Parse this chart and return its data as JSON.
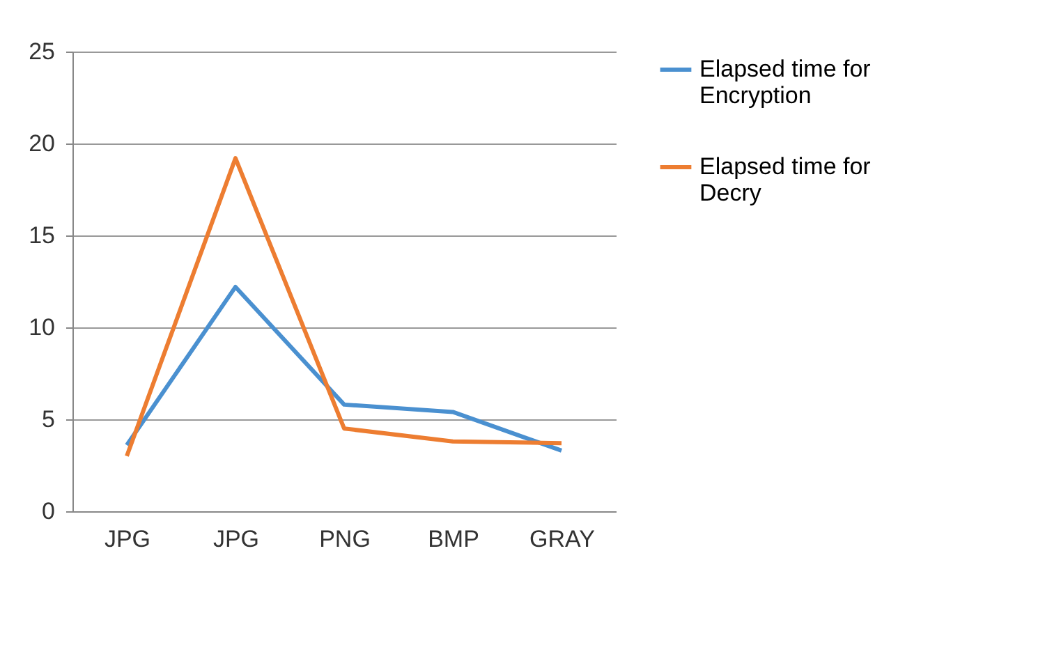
{
  "chart_data": {
    "type": "line",
    "categories": [
      "JPG",
      "JPG",
      "PNG",
      "BMP",
      "GRAY"
    ],
    "series": [
      {
        "name": "Elapsed time for Encryption",
        "color": "#4a90d0",
        "values": [
          3.6,
          12.2,
          5.8,
          5.4,
          3.3
        ]
      },
      {
        "name": "Elapsed time for Decry",
        "color": "#ed7d31",
        "values": [
          3.0,
          19.2,
          4.5,
          3.8,
          3.7
        ]
      }
    ],
    "ylim": [
      0,
      25
    ],
    "yticks": [
      0,
      5,
      10,
      15,
      20,
      25
    ],
    "grid": "y",
    "legend": "right",
    "marker": "none",
    "line_style": "solid"
  }
}
